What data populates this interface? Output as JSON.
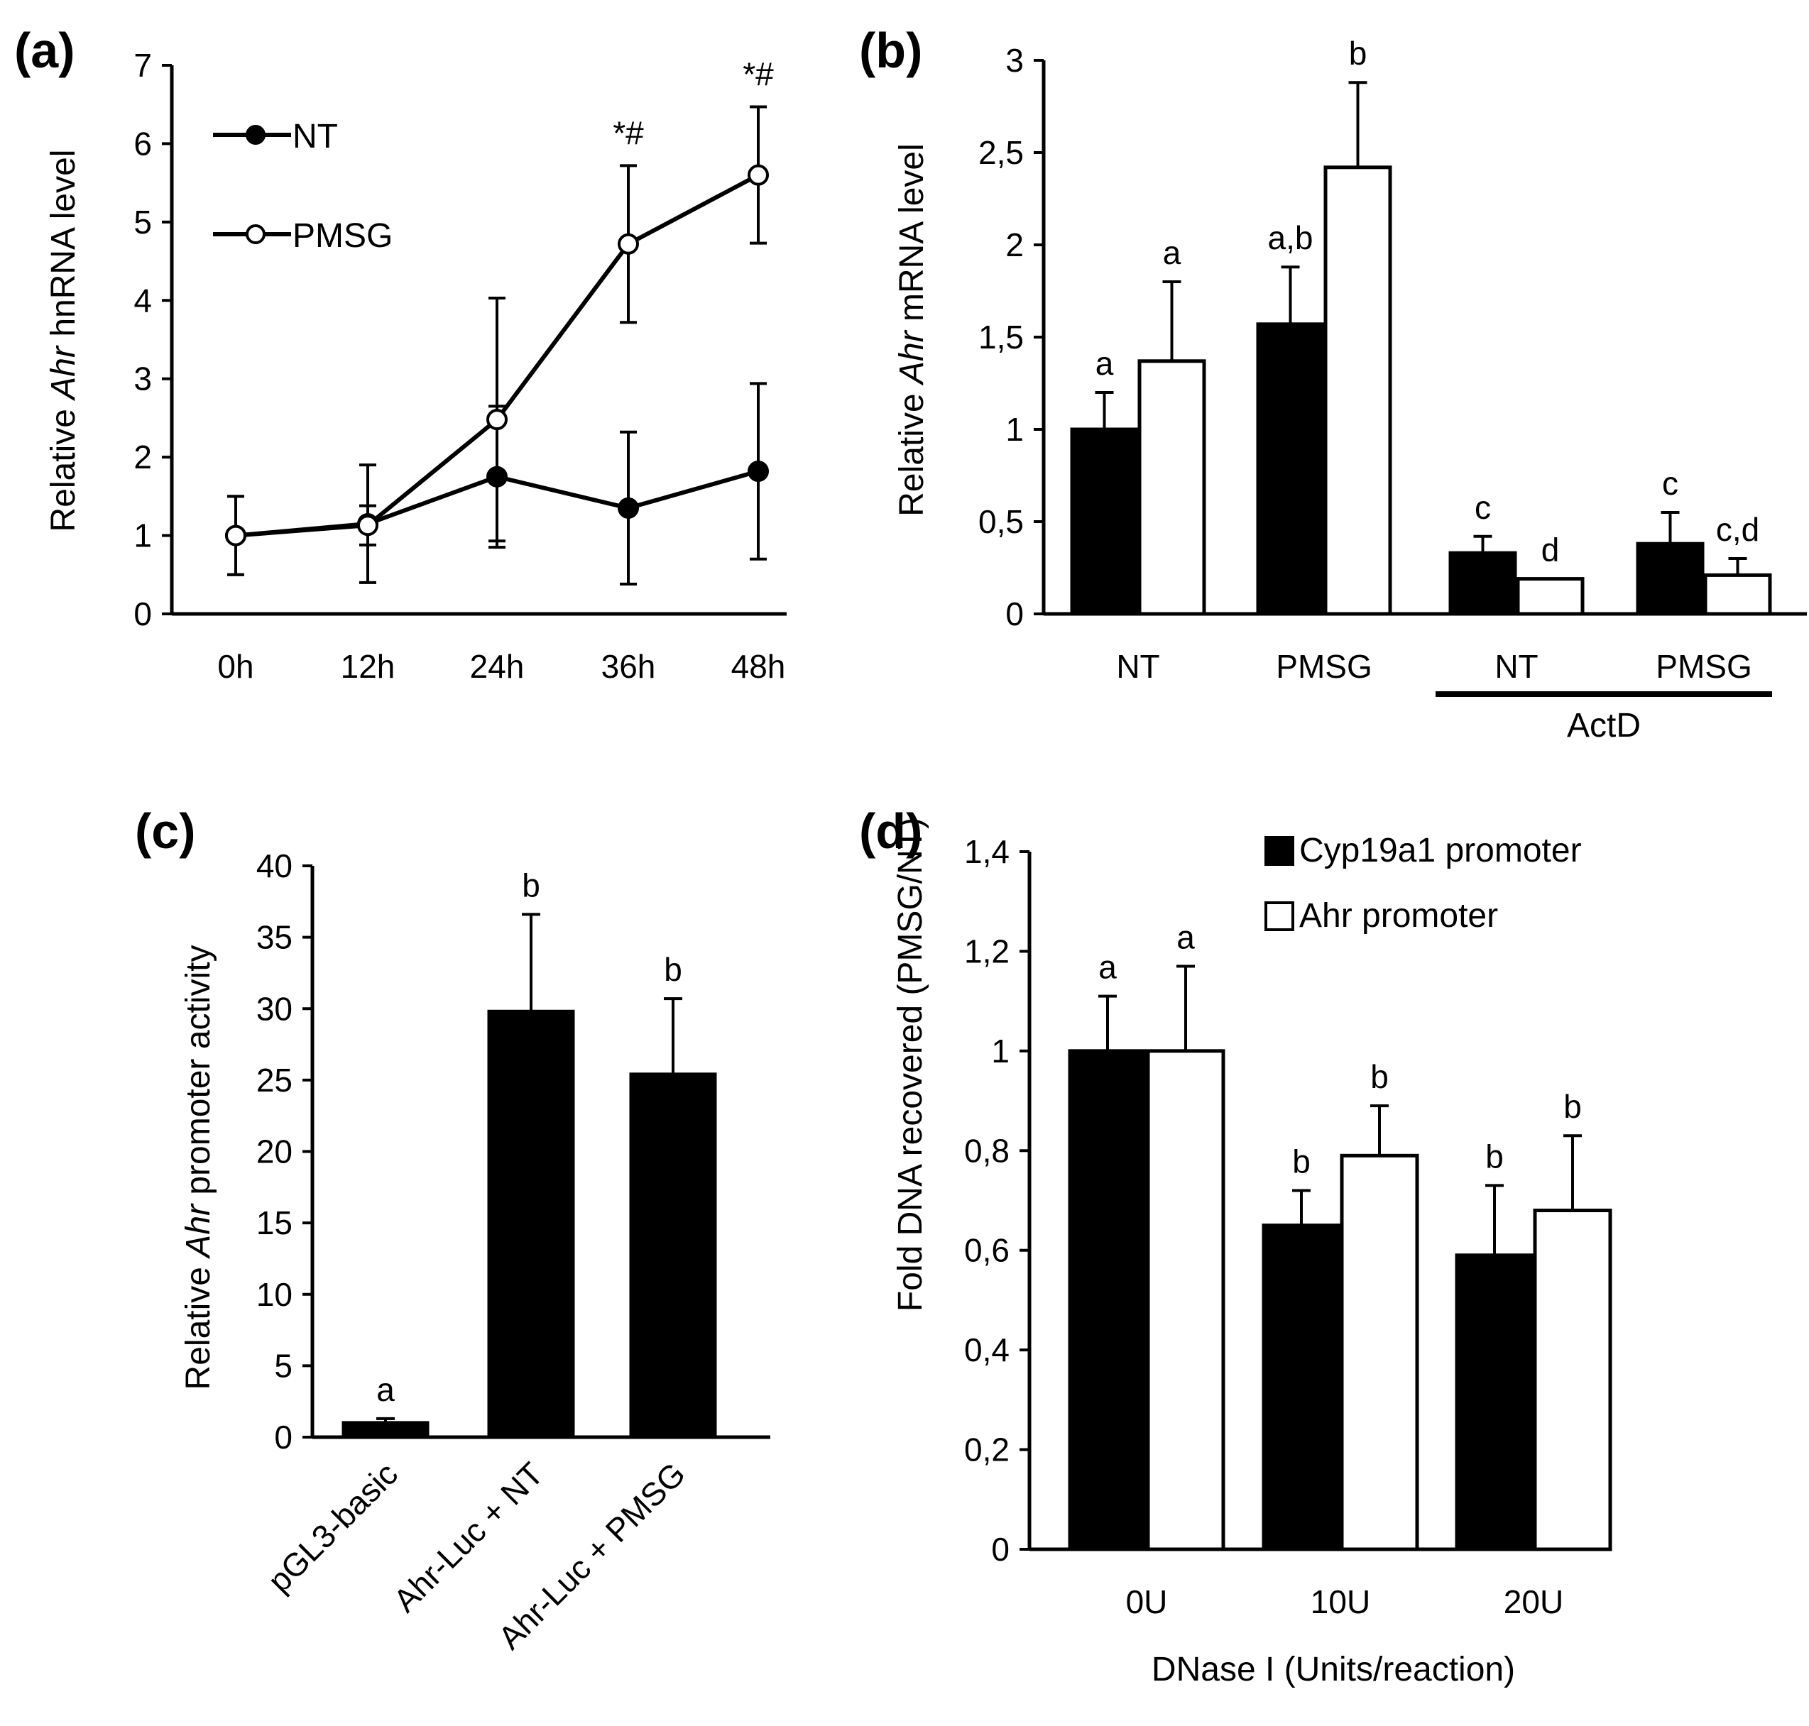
{
  "chart_data": [
    {
      "panel": "(a)",
      "type": "line",
      "ylabel_pre": "Relative ",
      "ylabel_it": "Ahr",
      "ylabel_post": " hnRNA level",
      "xlabel": "",
      "categories": [
        "0h",
        "12h",
        "24h",
        "36h",
        "48h"
      ],
      "ylim": [
        0,
        7
      ],
      "yticks": [
        "0",
        "1",
        "2",
        "3",
        "4",
        "5",
        "6",
        "7"
      ],
      "legend_position": "top-left",
      "series": [
        {
          "name": "NT",
          "marker": "filled",
          "values": [
            1.0,
            1.15,
            1.75,
            1.35,
            1.82
          ],
          "errors": [
            0.5,
            0.75,
            0.9,
            0.97,
            1.12
          ]
        },
        {
          "name": "PMSG",
          "marker": "open",
          "values": [
            1.0,
            1.13,
            2.48,
            4.72,
            5.6
          ],
          "errors": [
            0.5,
            0.25,
            1.55,
            1.0,
            0.87
          ]
        }
      ],
      "annotations": [
        {
          "category": "36h",
          "text": "*#"
        },
        {
          "category": "48h",
          "text": "*#"
        }
      ]
    },
    {
      "panel": "(b)",
      "type": "bar",
      "ylabel_pre": "Relative ",
      "ylabel_it": "Ahr",
      "ylabel_post": " mRNA level",
      "categories": [
        "NT",
        "PMSG",
        "NT",
        "PMSG"
      ],
      "group_label": "ActD",
      "group_covers": [
        2,
        3
      ],
      "ylim": [
        0,
        3
      ],
      "yticks": [
        "0",
        "0,5",
        "1",
        "1,5",
        "2",
        "2,5",
        "3"
      ],
      "series": [
        {
          "fill": "black",
          "values": [
            1.0,
            1.57,
            0.33,
            0.38
          ],
          "errors": [
            0.2,
            0.31,
            0.09,
            0.17
          ],
          "letters": [
            "a",
            "a,b",
            "c",
            "c"
          ]
        },
        {
          "fill": "white",
          "values": [
            1.37,
            2.42,
            0.19,
            0.21
          ],
          "errors": [
            0.43,
            0.46,
            0.0,
            0.09
          ],
          "letters": [
            "a",
            "b",
            "d",
            "c,d"
          ]
        }
      ]
    },
    {
      "panel": "(c)",
      "type": "bar",
      "ylabel_pre": "Relative ",
      "ylabel_it": "Ahr",
      "ylabel_post": " promoter activity",
      "categories": [
        "pGL3-basic",
        "Ahr-Luc + NT",
        "Ahr-Luc + PMSG"
      ],
      "ylim": [
        0,
        40
      ],
      "yticks": [
        "0",
        "5",
        "10",
        "15",
        "20",
        "25",
        "30",
        "35",
        "40"
      ],
      "series": [
        {
          "fill": "black",
          "values": [
            1.0,
            29.8,
            25.4
          ],
          "errors": [
            0.3,
            6.8,
            5.3
          ],
          "letters": [
            "a",
            "b",
            "b"
          ]
        }
      ]
    },
    {
      "panel": "(d)",
      "type": "bar",
      "ylabel": "Fold DNA recovered  (PMSG/NT)",
      "xlabel": "DNase I (Units/reaction)",
      "categories": [
        "0U",
        "10U",
        "20U"
      ],
      "ylim": [
        0,
        1.4
      ],
      "yticks": [
        "0",
        "0,2",
        "0,4",
        "0,6",
        "0,8",
        "1",
        "1,2",
        "1,4"
      ],
      "legend_position": "top-right",
      "series": [
        {
          "name": "Cyp19a1 promoter",
          "fill": "black",
          "values": [
            1.0,
            0.65,
            0.59
          ],
          "errors": [
            0.11,
            0.07,
            0.14
          ],
          "letters": [
            "a",
            "b",
            "b"
          ]
        },
        {
          "name": "Ahr promoter",
          "fill": "white",
          "values": [
            1.0,
            0.79,
            0.68
          ],
          "errors": [
            0.17,
            0.1,
            0.15
          ],
          "letters": [
            "a",
            "b",
            "b"
          ]
        }
      ]
    }
  ]
}
